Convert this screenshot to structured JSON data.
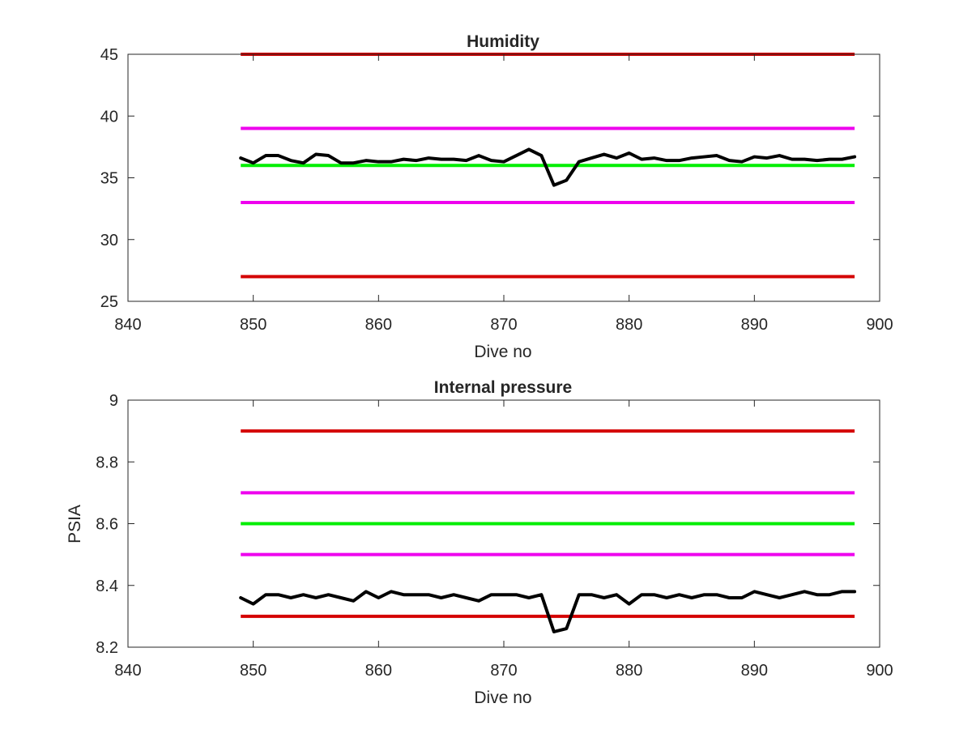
{
  "chart_data": [
    {
      "type": "line",
      "title": "Humidity",
      "xlabel": "Dive no",
      "ylabel": "",
      "xlim": [
        840,
        900
      ],
      "ylim": [
        25,
        45
      ],
      "xticks": [
        840,
        850,
        860,
        870,
        880,
        890,
        900
      ],
      "yticks": [
        25,
        30,
        35,
        40,
        45
      ],
      "grid": false,
      "legend": "none",
      "thresholds": [
        {
          "value": 45,
          "x": [
            849,
            898
          ],
          "color": "#d40000"
        },
        {
          "value": 39,
          "x": [
            849,
            898
          ],
          "color": "#ee00ee"
        },
        {
          "value": 36,
          "x": [
            849,
            898
          ],
          "color": "#00ee00"
        },
        {
          "value": 33,
          "x": [
            849,
            898
          ],
          "color": "#ee00ee"
        },
        {
          "value": 27,
          "x": [
            849,
            898
          ],
          "color": "#d40000"
        }
      ],
      "series": [
        {
          "color": "#000000",
          "x": [
            849,
            850,
            851,
            852,
            853,
            854,
            855,
            856,
            857,
            858,
            859,
            860,
            861,
            862,
            863,
            864,
            865,
            866,
            867,
            868,
            869,
            870,
            871,
            872,
            873,
            874,
            875,
            876,
            877,
            878,
            879,
            880,
            881,
            882,
            883,
            884,
            885,
            886,
            887,
            888,
            889,
            890,
            891,
            892,
            893,
            894,
            895,
            896,
            897,
            898
          ],
          "values": [
            36.6,
            36.2,
            36.8,
            36.8,
            36.4,
            36.2,
            36.9,
            36.8,
            36.2,
            36.2,
            36.4,
            36.3,
            36.3,
            36.5,
            36.4,
            36.6,
            36.5,
            36.5,
            36.4,
            36.8,
            36.4,
            36.3,
            36.8,
            37.3,
            36.8,
            34.4,
            34.8,
            36.3,
            36.6,
            36.9,
            36.6,
            37.0,
            36.5,
            36.6,
            36.4,
            36.4,
            36.6,
            36.7,
            36.8,
            36.4,
            36.3,
            36.7,
            36.6,
            36.8,
            36.5,
            36.5,
            36.4,
            36.5,
            36.5,
            36.7
          ]
        }
      ]
    },
    {
      "type": "line",
      "title": "Internal pressure",
      "xlabel": "Dive no",
      "ylabel": "PSIA",
      "xlim": [
        840,
        900
      ],
      "ylim": [
        8.2,
        9.0
      ],
      "xticks": [
        840,
        850,
        860,
        870,
        880,
        890,
        900
      ],
      "yticks": [
        8.2,
        8.4,
        8.6,
        8.8,
        9
      ],
      "grid": false,
      "legend": "none",
      "thresholds": [
        {
          "value": 8.9,
          "x": [
            849,
            898
          ],
          "color": "#d40000"
        },
        {
          "value": 8.7,
          "x": [
            849,
            898
          ],
          "color": "#ee00ee"
        },
        {
          "value": 8.6,
          "x": [
            849,
            898
          ],
          "color": "#00ee00"
        },
        {
          "value": 8.5,
          "x": [
            849,
            898
          ],
          "color": "#ee00ee"
        },
        {
          "value": 8.3,
          "x": [
            849,
            898
          ],
          "color": "#d40000"
        }
      ],
      "series": [
        {
          "color": "#000000",
          "x": [
            849,
            850,
            851,
            852,
            853,
            854,
            855,
            856,
            857,
            858,
            859,
            860,
            861,
            862,
            863,
            864,
            865,
            866,
            867,
            868,
            869,
            870,
            871,
            872,
            873,
            874,
            875,
            876,
            877,
            878,
            879,
            880,
            881,
            882,
            883,
            884,
            885,
            886,
            887,
            888,
            889,
            890,
            891,
            892,
            893,
            894,
            895,
            896,
            897,
            898
          ],
          "values": [
            8.36,
            8.34,
            8.37,
            8.37,
            8.36,
            8.37,
            8.36,
            8.37,
            8.36,
            8.35,
            8.38,
            8.36,
            8.38,
            8.37,
            8.37,
            8.37,
            8.36,
            8.37,
            8.36,
            8.35,
            8.37,
            8.37,
            8.37,
            8.36,
            8.37,
            8.25,
            8.26,
            8.37,
            8.37,
            8.36,
            8.37,
            8.34,
            8.37,
            8.37,
            8.36,
            8.37,
            8.36,
            8.37,
            8.37,
            8.36,
            8.36,
            8.38,
            8.37,
            8.36,
            8.37,
            8.38,
            8.37,
            8.37,
            8.38,
            8.38
          ]
        }
      ]
    }
  ]
}
